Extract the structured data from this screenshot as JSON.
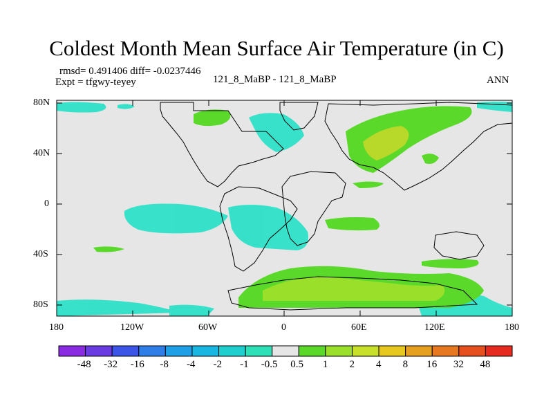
{
  "title": "Coldest Month Mean Surface Air Temperature (in C)",
  "stats_line": "rmsd= 0.491406 diff= -0.0237446",
  "expt_line": "Expt = tfgwy-teyey",
  "center_label": "121_8_MaBP - 121_8_MaBP",
  "season_label": "ANN",
  "lat_labels": [
    "80N",
    "40N",
    "0",
    "40S",
    "80S"
  ],
  "lon_labels": [
    "180",
    "120W",
    "60W",
    "0",
    "60E",
    "120E",
    "180"
  ],
  "colorbar": {
    "labels": [
      "-48",
      "-32",
      "-16",
      "-8",
      "-4",
      "-2",
      "-1",
      "-0.5",
      "0.5",
      "1",
      "2",
      "4",
      "8",
      "16",
      "32",
      "48"
    ],
    "colors": [
      "#8a2be2",
      "#6a3be0",
      "#3c55e6",
      "#2f7ee8",
      "#1f9fe6",
      "#18b6e0",
      "#1fcfd0",
      "#2ee0b8",
      "#e6e6e6",
      "#5ad92a",
      "#9ae02a",
      "#c8e02a",
      "#e6c81f",
      "#e6a01f",
      "#e6781f",
      "#e6501f",
      "#e62a1f"
    ]
  },
  "colors": {
    "background": "#e6e6e6",
    "coast": "#000000",
    "cyan_fill": "#2ee0c8",
    "green_fill": "#5ad92a",
    "lime_fill": "#9ae02a",
    "olive_fill": "#b8d82a"
  }
}
